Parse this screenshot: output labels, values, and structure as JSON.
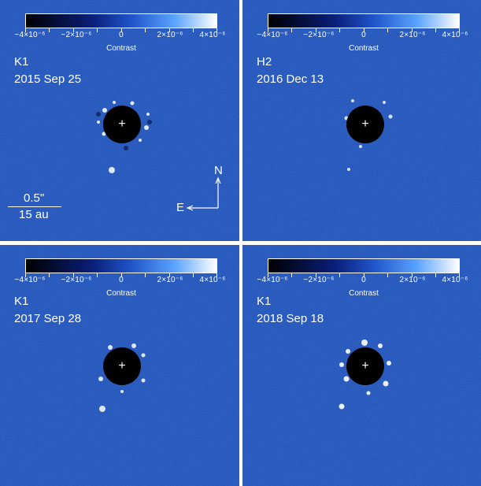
{
  "colorbar": {
    "ticks": [
      "−4×10⁻⁶",
      "−2×10⁻⁶",
      "0",
      "2×10⁻⁶",
      "4×10⁻⁶"
    ],
    "title": "Contrast"
  },
  "panels": [
    {
      "band": "K1",
      "date": "2015 Sep 25"
    },
    {
      "band": "H2",
      "date": "2016 Dec 13"
    },
    {
      "band": "K1",
      "date": "2017 Sep 28"
    },
    {
      "band": "K1",
      "date": "2018 Sep 18"
    }
  ],
  "scale": {
    "angular": "0.5\"",
    "physical": "15 au"
  },
  "compass": {
    "north": "N",
    "east": "E"
  },
  "colors": {
    "background": "#1f4fb8",
    "mask": "#000000",
    "text": "#ffffff"
  }
}
